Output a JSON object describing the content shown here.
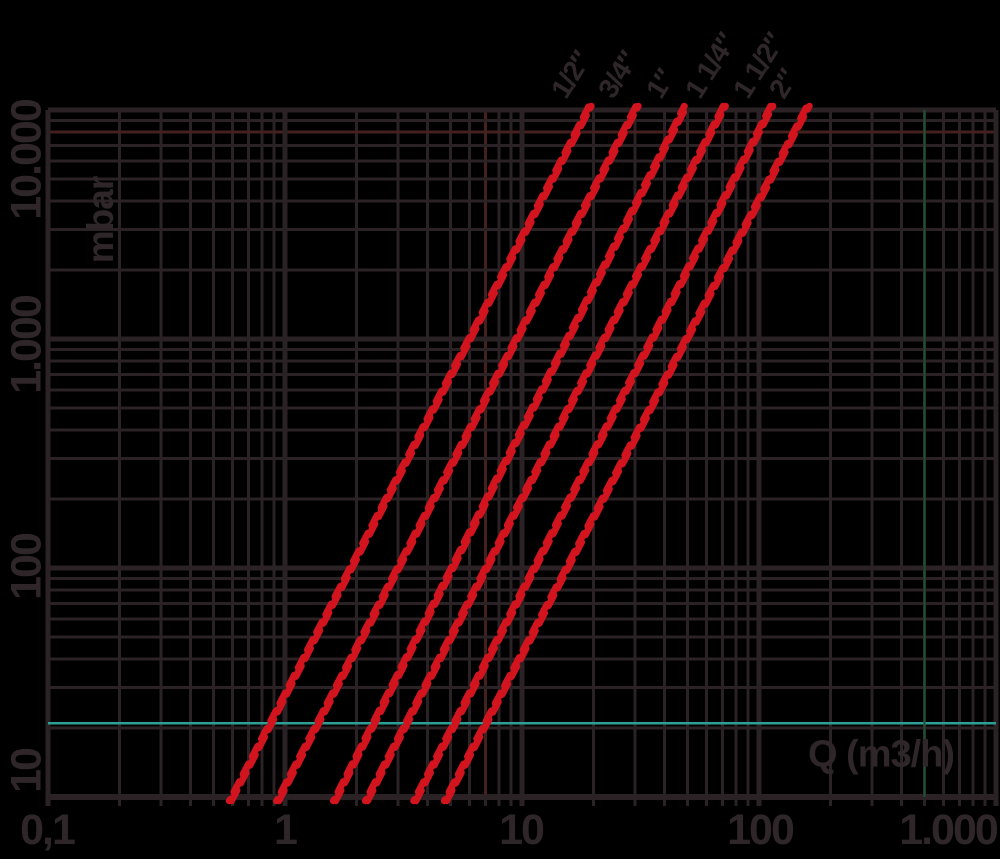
{
  "chart_data": {
    "type": "line",
    "title": "",
    "xlabel": "Q (m3/h)",
    "ylabel": "mbar",
    "x_scale": "log",
    "y_scale": "log",
    "xlim": [
      0.1,
      1000
    ],
    "ylim": [
      10,
      10000
    ],
    "x_ticks": [
      0.1,
      1,
      10,
      100,
      1000
    ],
    "y_ticks": [
      10,
      100,
      1000,
      10000
    ],
    "x_tick_labels": [
      "0,1",
      "1",
      "10",
      "100",
      "1.000"
    ],
    "y_tick_labels": [
      "10",
      "100",
      "1.000",
      "10.000"
    ],
    "grid": "log major + minor, full frame",
    "legend_position": "labels rotated above each curve top",
    "series": [
      {
        "name": "1/2\"",
        "label": "1/2″",
        "x": [
          0.6,
          19
        ],
        "y": [
          10,
          10000
        ]
      },
      {
        "name": "3/4\"",
        "label": "3/4″",
        "x": [
          0.95,
          30
        ],
        "y": [
          10,
          10000
        ]
      },
      {
        "name": "1\"",
        "label": "1″",
        "x": [
          1.65,
          48
        ],
        "y": [
          10,
          10000
        ]
      },
      {
        "name": "1 1/4\"",
        "label": "1 1/4″",
        "x": [
          2.25,
          70
        ],
        "y": [
          10,
          10000
        ]
      },
      {
        "name": "1 1/2\"",
        "label": "1 1/2″",
        "x": [
          3.6,
          111
        ],
        "y": [
          10,
          10000
        ]
      },
      {
        "name": "2\"",
        "label": "2″",
        "x": [
          4.85,
          158
        ],
        "y": [
          10,
          10000
        ]
      }
    ],
    "reference_lines": [
      {
        "orientation": "horizontal",
        "value": 21,
        "unit": "mbar",
        "color": "#2f9e96"
      },
      {
        "orientation": "vertical",
        "value": 500,
        "unit": "m3/h",
        "color": "#1d5130"
      },
      {
        "orientation": "horizontal",
        "value": 8000,
        "unit": "mbar",
        "color": "#44201f"
      },
      {
        "orientation": "vertical",
        "value": 7,
        "unit": "m3/h",
        "color": "#44201f"
      }
    ]
  },
  "colors": {
    "background": "#000000",
    "grid": "#2a2225",
    "text": "#2f2629",
    "series_red_bright": "#d2141f",
    "series_red_dark": "#9c0d16",
    "teal_reference": "#2f9e96",
    "green_reference": "#1d5130",
    "maroon_gridline": "#44201f"
  }
}
